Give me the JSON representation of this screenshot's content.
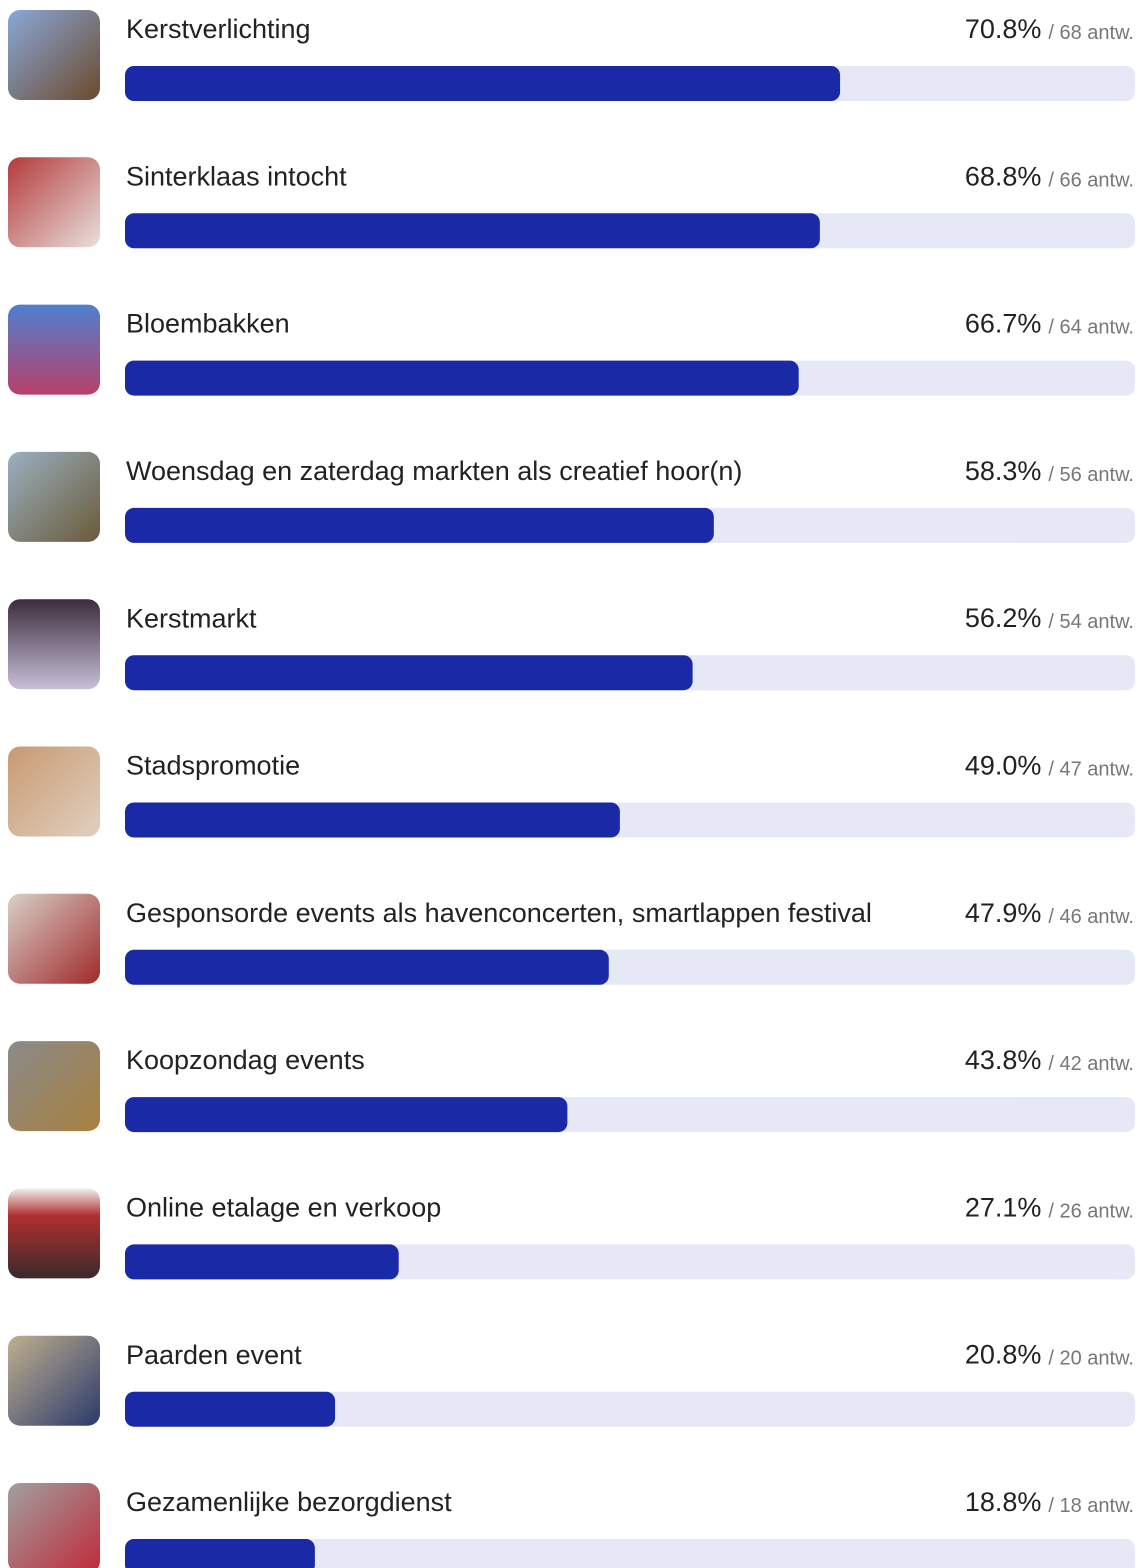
{
  "chart_data": {
    "type": "bar",
    "orientation": "horizontal",
    "categories": [
      "Kerstverlichting",
      "Sinterklaas intocht",
      "Bloembakken",
      "Woensdag en zaterdag markten als creatief hoor(n)",
      "Kerstmarkt",
      "Stadspromotie",
      "Gesponsorde events als havenconcerten, smartlappen festival",
      "Koopzondag events",
      "Online etalage en verkoop",
      "Paarden event",
      "Gezamenlijke bezorgdienst"
    ],
    "values": [
      70.8,
      68.8,
      66.7,
      58.3,
      56.2,
      49.0,
      47.9,
      43.8,
      27.1,
      20.8,
      18.8
    ],
    "value_labels": [
      "70.8%",
      "68.8%",
      "66.7%",
      "58.3%",
      "56.2%",
      "49.0%",
      "47.9%",
      "43.8%",
      "27.1%",
      "20.8%",
      "18.8%"
    ],
    "answer_labels": [
      "/ 68 antw.",
      "/ 66 antw.",
      "/ 64 antw.",
      "/ 56 antw.",
      "/ 54 antw.",
      "/ 47 antw.",
      "/ 46 antw.",
      "/ 42 antw.",
      "/ 26 antw.",
      "/ 20 antw.",
      "/ 18 antw."
    ],
    "color": "#1a2aa6",
    "track_color": "#e6e8f6",
    "xlim": [
      0,
      100
    ]
  }
}
